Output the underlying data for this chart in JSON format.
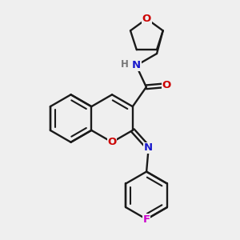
{
  "bg_color": "#efefef",
  "bond_color": "#1a1a1a",
  "bond_lw": 1.7,
  "atom_colors": {
    "O": "#cc0000",
    "N": "#1a1acc",
    "F": "#cc00cc",
    "H": "#777777"
  },
  "font_size": 9.5,
  "BL": 0.3
}
